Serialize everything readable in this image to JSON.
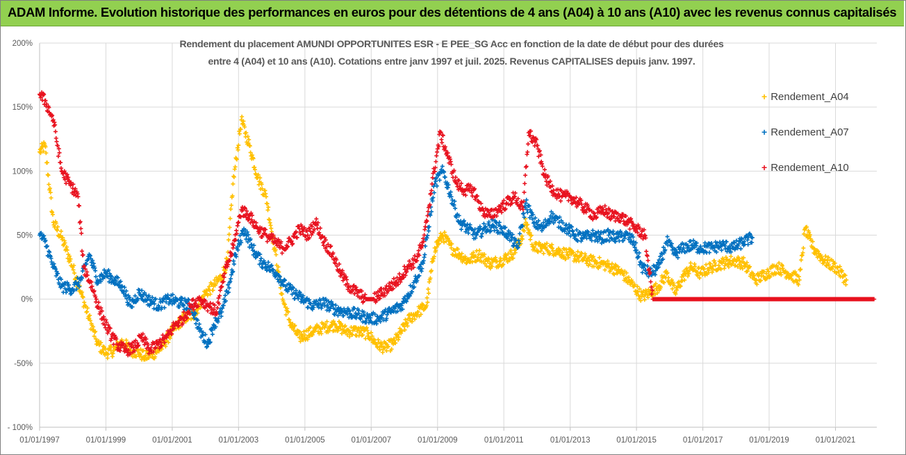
{
  "banner": {
    "title": "ADAM Informe. Evolution historique des performances en euros pour des détentions de 4 ans (A04) à 10 ans (A10) avec les revenus connus capitalisés",
    "color": "#92d050"
  },
  "chart_data": {
    "type": "scatter",
    "title_line1": "Rendement du placement AMUNDI OPPORTUNITES ESR - E PEE_SG Acc en fonction de la date de début pour des durées",
    "title_line2": "entre 4 (A04) et 10 ans (A10). Cotations entre janv 1997 et juil. 2025. Revenus CAPITALISES depuis janv. 1997.",
    "xlabel": "",
    "ylabel": "",
    "x_axis_type": "date",
    "xlim": [
      "1997-01-01",
      "2022-04-01"
    ],
    "x_tick_labels": [
      "01/01/1997",
      "01/01/1999",
      "01/01/2001",
      "01/01/2003",
      "01/01/2005",
      "01/01/2007",
      "01/01/2009",
      "01/01/2011",
      "01/01/2013",
      "01/01/2015",
      "01/01/2017",
      "01/01/2019",
      "01/01/2021"
    ],
    "ylim": [
      -100,
      200
    ],
    "y_unit": "%",
    "y_ticks": [
      -100,
      -50,
      0,
      50,
      100,
      150,
      200
    ],
    "y_tick_labels": [
      "- 100%",
      "-50%",
      "0%",
      "50%",
      "100%",
      "150%",
      "200%"
    ],
    "grid": {
      "horizontal": true,
      "vertical": true
    },
    "legend_position": "right",
    "marker": "+",
    "series": [
      {
        "name": "Rendement_A04",
        "color": "#ffc000",
        "points": [
          [
            "1997-01-01",
            115
          ],
          [
            "1997-03-01",
            120
          ],
          [
            "1997-06-01",
            60
          ],
          [
            "1997-09-01",
            48
          ],
          [
            "1998-01-01",
            25
          ],
          [
            "1998-04-01",
            5
          ],
          [
            "1998-07-01",
            -15
          ],
          [
            "1998-10-01",
            -35
          ],
          [
            "1999-01-01",
            -42
          ],
          [
            "1999-04-01",
            -40
          ],
          [
            "1999-07-01",
            -33
          ],
          [
            "1999-10-01",
            -40
          ],
          [
            "2000-01-01",
            -42
          ],
          [
            "2000-03-01",
            -45
          ],
          [
            "2000-06-01",
            -43
          ],
          [
            "2000-09-01",
            -38
          ],
          [
            "2001-01-01",
            -25
          ],
          [
            "2001-05-01",
            -15
          ],
          [
            "2001-09-01",
            -12
          ],
          [
            "2002-01-01",
            5
          ],
          [
            "2002-04-01",
            10
          ],
          [
            "2002-07-01",
            18
          ],
          [
            "2002-09-01",
            30
          ],
          [
            "2002-11-01",
            90
          ],
          [
            "2003-02-01",
            140
          ],
          [
            "2003-05-01",
            120
          ],
          [
            "2003-08-01",
            95
          ],
          [
            "2003-11-01",
            80
          ],
          [
            "2004-02-01",
            40
          ],
          [
            "2004-05-01",
            0
          ],
          [
            "2004-08-01",
            -20
          ],
          [
            "2004-11-01",
            -30
          ],
          [
            "2005-01-01",
            -28
          ],
          [
            "2005-04-01",
            -25
          ],
          [
            "2005-08-01",
            -22
          ],
          [
            "2005-12-01",
            -20
          ],
          [
            "2006-04-01",
            -25
          ],
          [
            "2006-08-01",
            -25
          ],
          [
            "2006-12-01",
            -27
          ],
          [
            "2007-03-01",
            -35
          ],
          [
            "2007-06-01",
            -38
          ],
          [
            "2007-09-01",
            -35
          ],
          [
            "2007-12-01",
            -25
          ],
          [
            "2008-03-01",
            -15
          ],
          [
            "2008-06-01",
            -10
          ],
          [
            "2008-09-01",
            -5
          ],
          [
            "2008-12-01",
            40
          ],
          [
            "2009-03-01",
            50
          ],
          [
            "2009-06-01",
            40
          ],
          [
            "2009-09-01",
            35
          ],
          [
            "2009-12-01",
            30
          ],
          [
            "2010-04-01",
            35
          ],
          [
            "2010-08-01",
            28
          ],
          [
            "2010-12-01",
            30
          ],
          [
            "2011-04-01",
            35
          ],
          [
            "2011-07-01",
            45
          ],
          [
            "2011-09-01",
            60
          ],
          [
            "2011-12-01",
            40
          ],
          [
            "2012-04-01",
            40
          ],
          [
            "2012-08-01",
            38
          ],
          [
            "2012-12-01",
            35
          ],
          [
            "2013-04-01",
            33
          ],
          [
            "2013-08-01",
            30
          ],
          [
            "2013-12-01",
            28
          ],
          [
            "2014-04-01",
            25
          ],
          [
            "2014-08-01",
            20
          ],
          [
            "2014-12-01",
            10
          ],
          [
            "2015-03-01",
            2
          ],
          [
            "2015-06-01",
            5
          ],
          [
            "2015-09-01",
            10
          ],
          [
            "2015-12-01",
            20
          ],
          [
            "2016-03-01",
            5
          ],
          [
            "2016-06-01",
            18
          ],
          [
            "2016-09-01",
            25
          ],
          [
            "2016-12-01",
            20
          ],
          [
            "2017-04-01",
            25
          ],
          [
            "2017-08-01",
            28
          ],
          [
            "2017-12-01",
            30
          ],
          [
            "2018-04-01",
            28
          ],
          [
            "2018-08-01",
            15
          ],
          [
            "2018-12-01",
            20
          ],
          [
            "2019-04-01",
            25
          ],
          [
            "2019-08-01",
            20
          ],
          [
            "2019-12-01",
            15
          ],
          [
            "2020-02-01",
            55
          ],
          [
            "2020-05-01",
            40
          ],
          [
            "2020-09-01",
            30
          ],
          [
            "2021-01-01",
            25
          ],
          [
            "2021-05-01",
            15
          ]
        ]
      },
      {
        "name": "Rendement_A07",
        "color": "#0070c0",
        "points": [
          [
            "1997-01-01",
            50
          ],
          [
            "1997-03-01",
            45
          ],
          [
            "1997-06-01",
            25
          ],
          [
            "1997-09-01",
            10
          ],
          [
            "1998-01-01",
            8
          ],
          [
            "1998-04-01",
            15
          ],
          [
            "1998-07-01",
            35
          ],
          [
            "1998-10-01",
            15
          ],
          [
            "1999-01-01",
            20
          ],
          [
            "1999-04-01",
            15
          ],
          [
            "1999-07-01",
            10
          ],
          [
            "1999-10-01",
            -5
          ],
          [
            "2000-01-01",
            5
          ],
          [
            "2000-04-01",
            0
          ],
          [
            "2000-08-01",
            -5
          ],
          [
            "2000-12-01",
            0
          ],
          [
            "2001-04-01",
            -3
          ],
          [
            "2001-08-01",
            -5
          ],
          [
            "2001-11-01",
            -25
          ],
          [
            "2002-02-01",
            -35
          ],
          [
            "2002-04-01",
            -20
          ],
          [
            "2002-07-01",
            -10
          ],
          [
            "2002-09-01",
            5
          ],
          [
            "2002-12-01",
            35
          ],
          [
            "2003-03-01",
            55
          ],
          [
            "2003-06-01",
            40
          ],
          [
            "2003-09-01",
            30
          ],
          [
            "2003-12-01",
            25
          ],
          [
            "2004-03-01",
            20
          ],
          [
            "2004-06-01",
            10
          ],
          [
            "2004-09-01",
            5
          ],
          [
            "2004-12-01",
            0
          ],
          [
            "2005-04-01",
            -5
          ],
          [
            "2005-08-01",
            -3
          ],
          [
            "2005-12-01",
            -8
          ],
          [
            "2006-04-01",
            -10
          ],
          [
            "2006-08-01",
            -12
          ],
          [
            "2006-12-01",
            -15
          ],
          [
            "2007-04-01",
            -15
          ],
          [
            "2007-08-01",
            -10
          ],
          [
            "2007-12-01",
            -5
          ],
          [
            "2008-04-01",
            10
          ],
          [
            "2008-08-01",
            30
          ],
          [
            "2008-12-01",
            90
          ],
          [
            "2009-03-01",
            100
          ],
          [
            "2009-06-01",
            80
          ],
          [
            "2009-09-01",
            60
          ],
          [
            "2009-12-01",
            55
          ],
          [
            "2010-03-01",
            50
          ],
          [
            "2010-06-01",
            55
          ],
          [
            "2010-09-01",
            58
          ],
          [
            "2010-12-01",
            55
          ],
          [
            "2011-03-01",
            50
          ],
          [
            "2011-06-01",
            40
          ],
          [
            "2011-09-01",
            75
          ],
          [
            "2011-12-01",
            60
          ],
          [
            "2012-03-01",
            55
          ],
          [
            "2012-06-01",
            65
          ],
          [
            "2012-09-01",
            60
          ],
          [
            "2012-12-01",
            55
          ],
          [
            "2013-03-01",
            50
          ],
          [
            "2013-06-01",
            48
          ],
          [
            "2013-09-01",
            50
          ],
          [
            "2013-12-01",
            48
          ],
          [
            "2014-03-01",
            50
          ],
          [
            "2014-06-01",
            48
          ],
          [
            "2014-09-01",
            50
          ],
          [
            "2014-12-01",
            45
          ],
          [
            "2015-03-01",
            25
          ],
          [
            "2015-06-01",
            20
          ],
          [
            "2015-09-01",
            25
          ],
          [
            "2015-12-01",
            45
          ],
          [
            "2016-03-01",
            35
          ],
          [
            "2016-06-01",
            40
          ],
          [
            "2016-09-01",
            42
          ],
          [
            "2016-12-01",
            40
          ],
          [
            "2017-04-01",
            40
          ],
          [
            "2017-08-01",
            42
          ],
          [
            "2017-12-01",
            40
          ],
          [
            "2018-04-01",
            45
          ],
          [
            "2018-07-01",
            48
          ]
        ]
      },
      {
        "name": "Rendement_A10",
        "color": "#e8121f",
        "points": [
          [
            "1997-01-01",
            160
          ],
          [
            "1997-03-01",
            155
          ],
          [
            "1997-06-01",
            140
          ],
          [
            "1997-09-01",
            100
          ],
          [
            "1997-12-01",
            90
          ],
          [
            "1998-03-01",
            80
          ],
          [
            "1998-05-01",
            25
          ],
          [
            "1998-08-01",
            10
          ],
          [
            "1998-11-01",
            -10
          ],
          [
            "1999-02-01",
            -25
          ],
          [
            "1999-05-01",
            -35
          ],
          [
            "1999-08-01",
            -40
          ],
          [
            "1999-11-01",
            -38
          ],
          [
            "2000-02-01",
            -30
          ],
          [
            "2000-05-01",
            -40
          ],
          [
            "2000-08-01",
            -35
          ],
          [
            "2000-11-01",
            -30
          ],
          [
            "2001-02-01",
            -20
          ],
          [
            "2001-05-01",
            -15
          ],
          [
            "2001-08-01",
            -5
          ],
          [
            "2001-11-01",
            0
          ],
          [
            "2002-02-01",
            -5
          ],
          [
            "2002-05-01",
            -10
          ],
          [
            "2002-08-01",
            20
          ],
          [
            "2002-11-01",
            40
          ],
          [
            "2003-02-01",
            70
          ],
          [
            "2003-05-01",
            65
          ],
          [
            "2003-08-01",
            55
          ],
          [
            "2003-11-01",
            50
          ],
          [
            "2004-02-01",
            45
          ],
          [
            "2004-05-01",
            40
          ],
          [
            "2004-08-01",
            45
          ],
          [
            "2004-11-01",
            55
          ],
          [
            "2005-02-01",
            50
          ],
          [
            "2005-05-01",
            60
          ],
          [
            "2005-08-01",
            45
          ],
          [
            "2005-11-01",
            35
          ],
          [
            "2006-02-01",
            20
          ],
          [
            "2006-05-01",
            10
          ],
          [
            "2006-08-01",
            5
          ],
          [
            "2006-11-01",
            0
          ],
          [
            "2007-02-01",
            0
          ],
          [
            "2007-05-01",
            5
          ],
          [
            "2007-08-01",
            10
          ],
          [
            "2007-11-01",
            15
          ],
          [
            "2008-02-01",
            25
          ],
          [
            "2008-05-01",
            30
          ],
          [
            "2008-08-01",
            45
          ],
          [
            "2008-11-01",
            90
          ],
          [
            "2009-02-01",
            130
          ],
          [
            "2009-05-01",
            110
          ],
          [
            "2009-08-01",
            90
          ],
          [
            "2009-11-01",
            85
          ],
          [
            "2010-02-01",
            85
          ],
          [
            "2010-05-01",
            70
          ],
          [
            "2010-08-01",
            65
          ],
          [
            "2010-11-01",
            70
          ],
          [
            "2011-02-01",
            75
          ],
          [
            "2011-05-01",
            80
          ],
          [
            "2011-08-01",
            70
          ],
          [
            "2011-10-01",
            130
          ],
          [
            "2012-01-01",
            120
          ],
          [
            "2012-04-01",
            95
          ],
          [
            "2012-07-01",
            85
          ],
          [
            "2012-10-01",
            80
          ],
          [
            "2013-01-01",
            80
          ],
          [
            "2013-04-01",
            75
          ],
          [
            "2013-07-01",
            70
          ],
          [
            "2013-10-01",
            65
          ],
          [
            "2014-01-01",
            70
          ],
          [
            "2014-04-01",
            65
          ],
          [
            "2014-07-01",
            65
          ],
          [
            "2014-10-01",
            60
          ],
          [
            "2015-01-01",
            55
          ],
          [
            "2015-04-01",
            50
          ],
          [
            "2015-07-01",
            0
          ],
          [
            "2016-01-01",
            0
          ],
          [
            "2017-01-01",
            0
          ],
          [
            "2018-01-01",
            0
          ],
          [
            "2019-01-01",
            0
          ],
          [
            "2020-01-01",
            0
          ],
          [
            "2021-01-01",
            0
          ],
          [
            "2022-03-01",
            0
          ]
        ]
      }
    ]
  }
}
